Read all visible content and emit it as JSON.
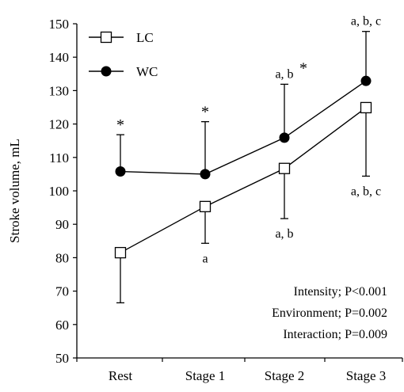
{
  "chart_data": {
    "type": "line",
    "categories": [
      "Rest",
      "Stage 1",
      "Stage 2",
      "Stage 3"
    ],
    "ylabel": "Stroke volume, mL",
    "ylim": [
      50,
      150
    ],
    "yticks": [
      50,
      60,
      70,
      80,
      90,
      100,
      110,
      120,
      130,
      140,
      150
    ],
    "grid": false,
    "legend_position": "top-left",
    "series": [
      {
        "name": "LC",
        "marker": "open-square",
        "values": [
          81.5,
          95.3,
          106.7,
          124.9
        ],
        "error": [
          15,
          11,
          15,
          20.5
        ],
        "error_direction": "down"
      },
      {
        "name": "WC",
        "marker": "filled-circle",
        "values": [
          105.8,
          105.0,
          115.9,
          132.9
        ],
        "error": [
          11,
          15.7,
          16,
          14.8
        ],
        "error_direction": "up"
      }
    ],
    "annotations": {
      "wc_above": [
        "*",
        "*",
        "a, b",
        "a, b, c"
      ],
      "wc_star_stage2": "*",
      "lc_below": [
        "",
        "a",
        "a, b",
        "a, b, c"
      ]
    },
    "stats": [
      "Intensity; P<0.001",
      "Environment; P=0.002",
      "Interaction; P=0.009"
    ]
  }
}
